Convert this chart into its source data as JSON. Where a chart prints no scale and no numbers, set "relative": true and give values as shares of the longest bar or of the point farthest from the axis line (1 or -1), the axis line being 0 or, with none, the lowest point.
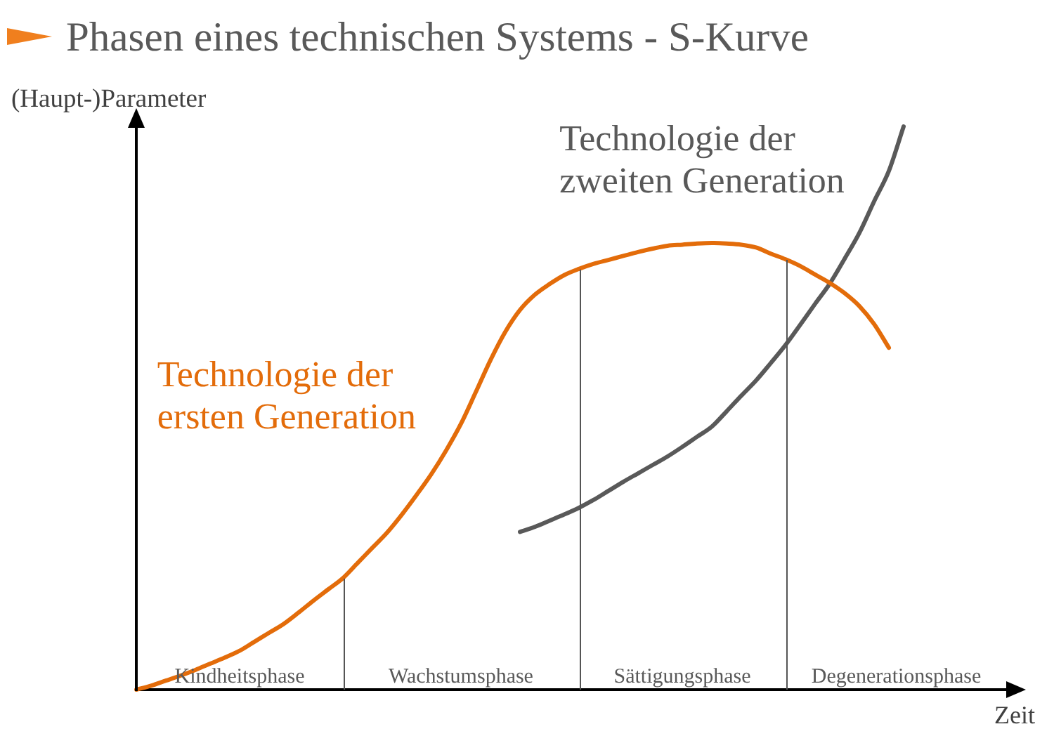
{
  "chart_data": {
    "type": "line",
    "title": "Phasen eines technischen Systems - S-Kurve",
    "xlabel": "Zeit",
    "ylabel": "(Haupt-)Parameter",
    "relative": true,
    "categories": [
      null,
      null,
      null,
      null,
      null,
      null,
      null,
      null,
      null,
      null,
      null,
      null,
      null,
      null,
      null,
      null,
      null,
      null,
      null,
      null,
      null,
      null,
      null,
      null,
      null,
      null,
      null,
      null,
      null,
      null,
      null,
      null,
      null,
      null,
      null,
      null,
      null,
      null,
      null,
      null,
      null,
      null,
      null,
      null,
      null,
      null,
      null,
      null,
      null,
      null,
      null,
      null,
      null,
      null,
      null,
      null,
      null,
      null,
      null,
      null
    ],
    "series": [
      {
        "name": "Technologie der ersten Generation",
        "color": "#e36c0a",
        "values": [
          0,
          0.007,
          0.016,
          0.025,
          0.035,
          0.046,
          0.057,
          0.069,
          0.085,
          0.101,
          0.117,
          0.137,
          0.158,
          0.178,
          0.198,
          0.225,
          0.252,
          0.279,
          0.311,
          0.346,
          0.383,
          0.425,
          0.472,
          0.528,
          0.585,
          0.635,
          0.674,
          0.701,
          0.72,
          0.736,
          0.747,
          0.756,
          0.763,
          0.77,
          0.777,
          0.783,
          0.788,
          0.79,
          0.792,
          0.793,
          0.792,
          0.79,
          0.785,
          0.774,
          0.764,
          0.752,
          0.737,
          0.722,
          0.704,
          0.681,
          0.649,
          0.607,
          null,
          null,
          null,
          null,
          null,
          null,
          null,
          null
        ]
      },
      {
        "name": "Technologie der zweiten Generation",
        "color": "#595959",
        "values": [
          null,
          null,
          null,
          null,
          null,
          null,
          null,
          null,
          null,
          null,
          null,
          null,
          null,
          null,
          null,
          null,
          null,
          null,
          null,
          null,
          null,
          null,
          null,
          null,
          null,
          null,
          0.28,
          0.289,
          0.3,
          0.311,
          0.323,
          0.337,
          0.353,
          0.369,
          0.384,
          0.399,
          0.414,
          0.431,
          0.449,
          0.467,
          0.494,
          0.522,
          0.549,
          0.58,
          0.612,
          0.648,
          0.685,
          0.721,
          0.765,
          0.811,
          0.867,
          0.921,
          1,
          null,
          null,
          null,
          null,
          null,
          null,
          null
        ]
      }
    ],
    "annotations": [
      "Kindheitsphase",
      "Wachstumsphase",
      "Sättigungsphase",
      "Degenerationsphase"
    ],
    "legend": false,
    "grid": false,
    "marker": "none",
    "line_style": "solid"
  }
}
